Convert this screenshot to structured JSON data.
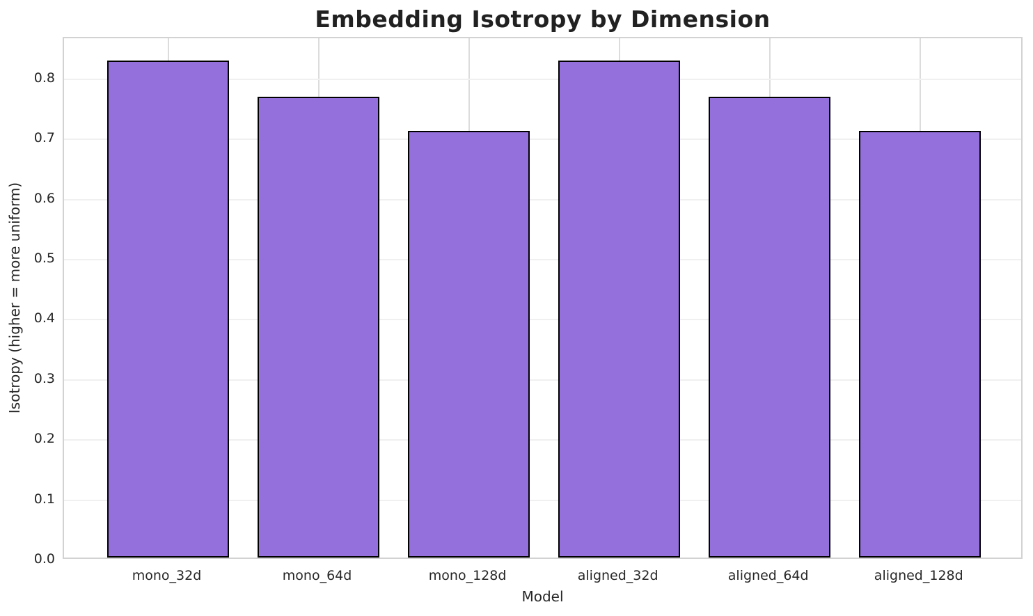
{
  "chart_data": {
    "type": "bar",
    "title": "Embedding Isotropy by Dimension",
    "xlabel": "Model",
    "ylabel": "Isotropy (higher = more uniform)",
    "categories": [
      "mono_32d",
      "mono_64d",
      "mono_128d",
      "aligned_32d",
      "aligned_64d",
      "aligned_128d"
    ],
    "values": [
      0.826,
      0.766,
      0.71,
      0.826,
      0.766,
      0.71
    ],
    "ylim": [
      0,
      0.868
    ],
    "ytick_labels": [
      "0.0",
      "0.1",
      "0.2",
      "0.3",
      "0.4",
      "0.5",
      "0.6",
      "0.7",
      "0.8"
    ],
    "grid": true,
    "legend_position": "none",
    "colors": {
      "bar_fill": "#9370DB",
      "bar_edge": "#000000",
      "grid_horizontal": "#f0f0f0",
      "grid_vertical": "#dcdcdc",
      "spine": "#d2d2d2",
      "text": "#262626",
      "title": "#212121",
      "background": "#ffffff"
    }
  }
}
